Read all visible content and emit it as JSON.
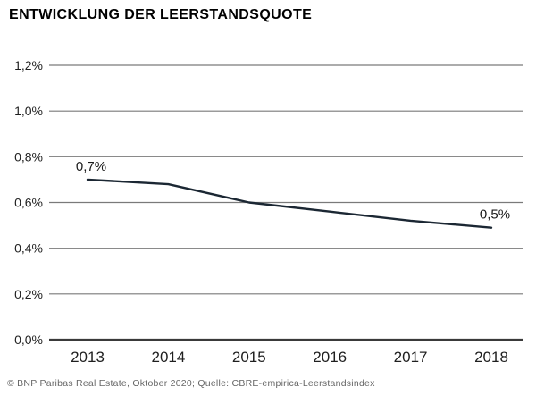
{
  "header": {
    "title": "ENTWICKLUNG DER LEERSTANDSQUOTE"
  },
  "footer": {
    "credit": "© BNP Paribas Real Estate, Oktober 2020; Quelle: CBRE-empirica-Leerstandsindex"
  },
  "colors": {
    "background": "#ffffff",
    "line": "#1b2733",
    "gridline": "#7a7a7a",
    "baseline": "#3a3a3a",
    "axis_text": "#1f1f1f",
    "label_text": "#1a1a1a",
    "footer_text": "#666666"
  },
  "chart_data": {
    "type": "line",
    "title": "ENTWICKLUNG DER LEERSTANDSQUOTE",
    "categories": [
      "2013",
      "2014",
      "2015",
      "2016",
      "2017",
      "2018"
    ],
    "values": [
      0.7,
      0.68,
      0.6,
      0.56,
      0.52,
      0.49
    ],
    "unit": "%",
    "xlabel": "",
    "ylabel": "",
    "ylim": [
      0.0,
      1.2
    ],
    "y_tick_labels": [
      "1,2%",
      "1,0%",
      "0,8%",
      "0,6%",
      "0,4%",
      "0,2%",
      "0,0%"
    ],
    "y_tick_values": [
      1.2,
      1.0,
      0.8,
      0.6,
      0.4,
      0.2,
      0.0
    ],
    "grid": true,
    "legend_position": "none",
    "point_labels": [
      {
        "index": 0,
        "text": "0,7%"
      },
      {
        "index": 5,
        "text": "0,5%"
      }
    ]
  }
}
